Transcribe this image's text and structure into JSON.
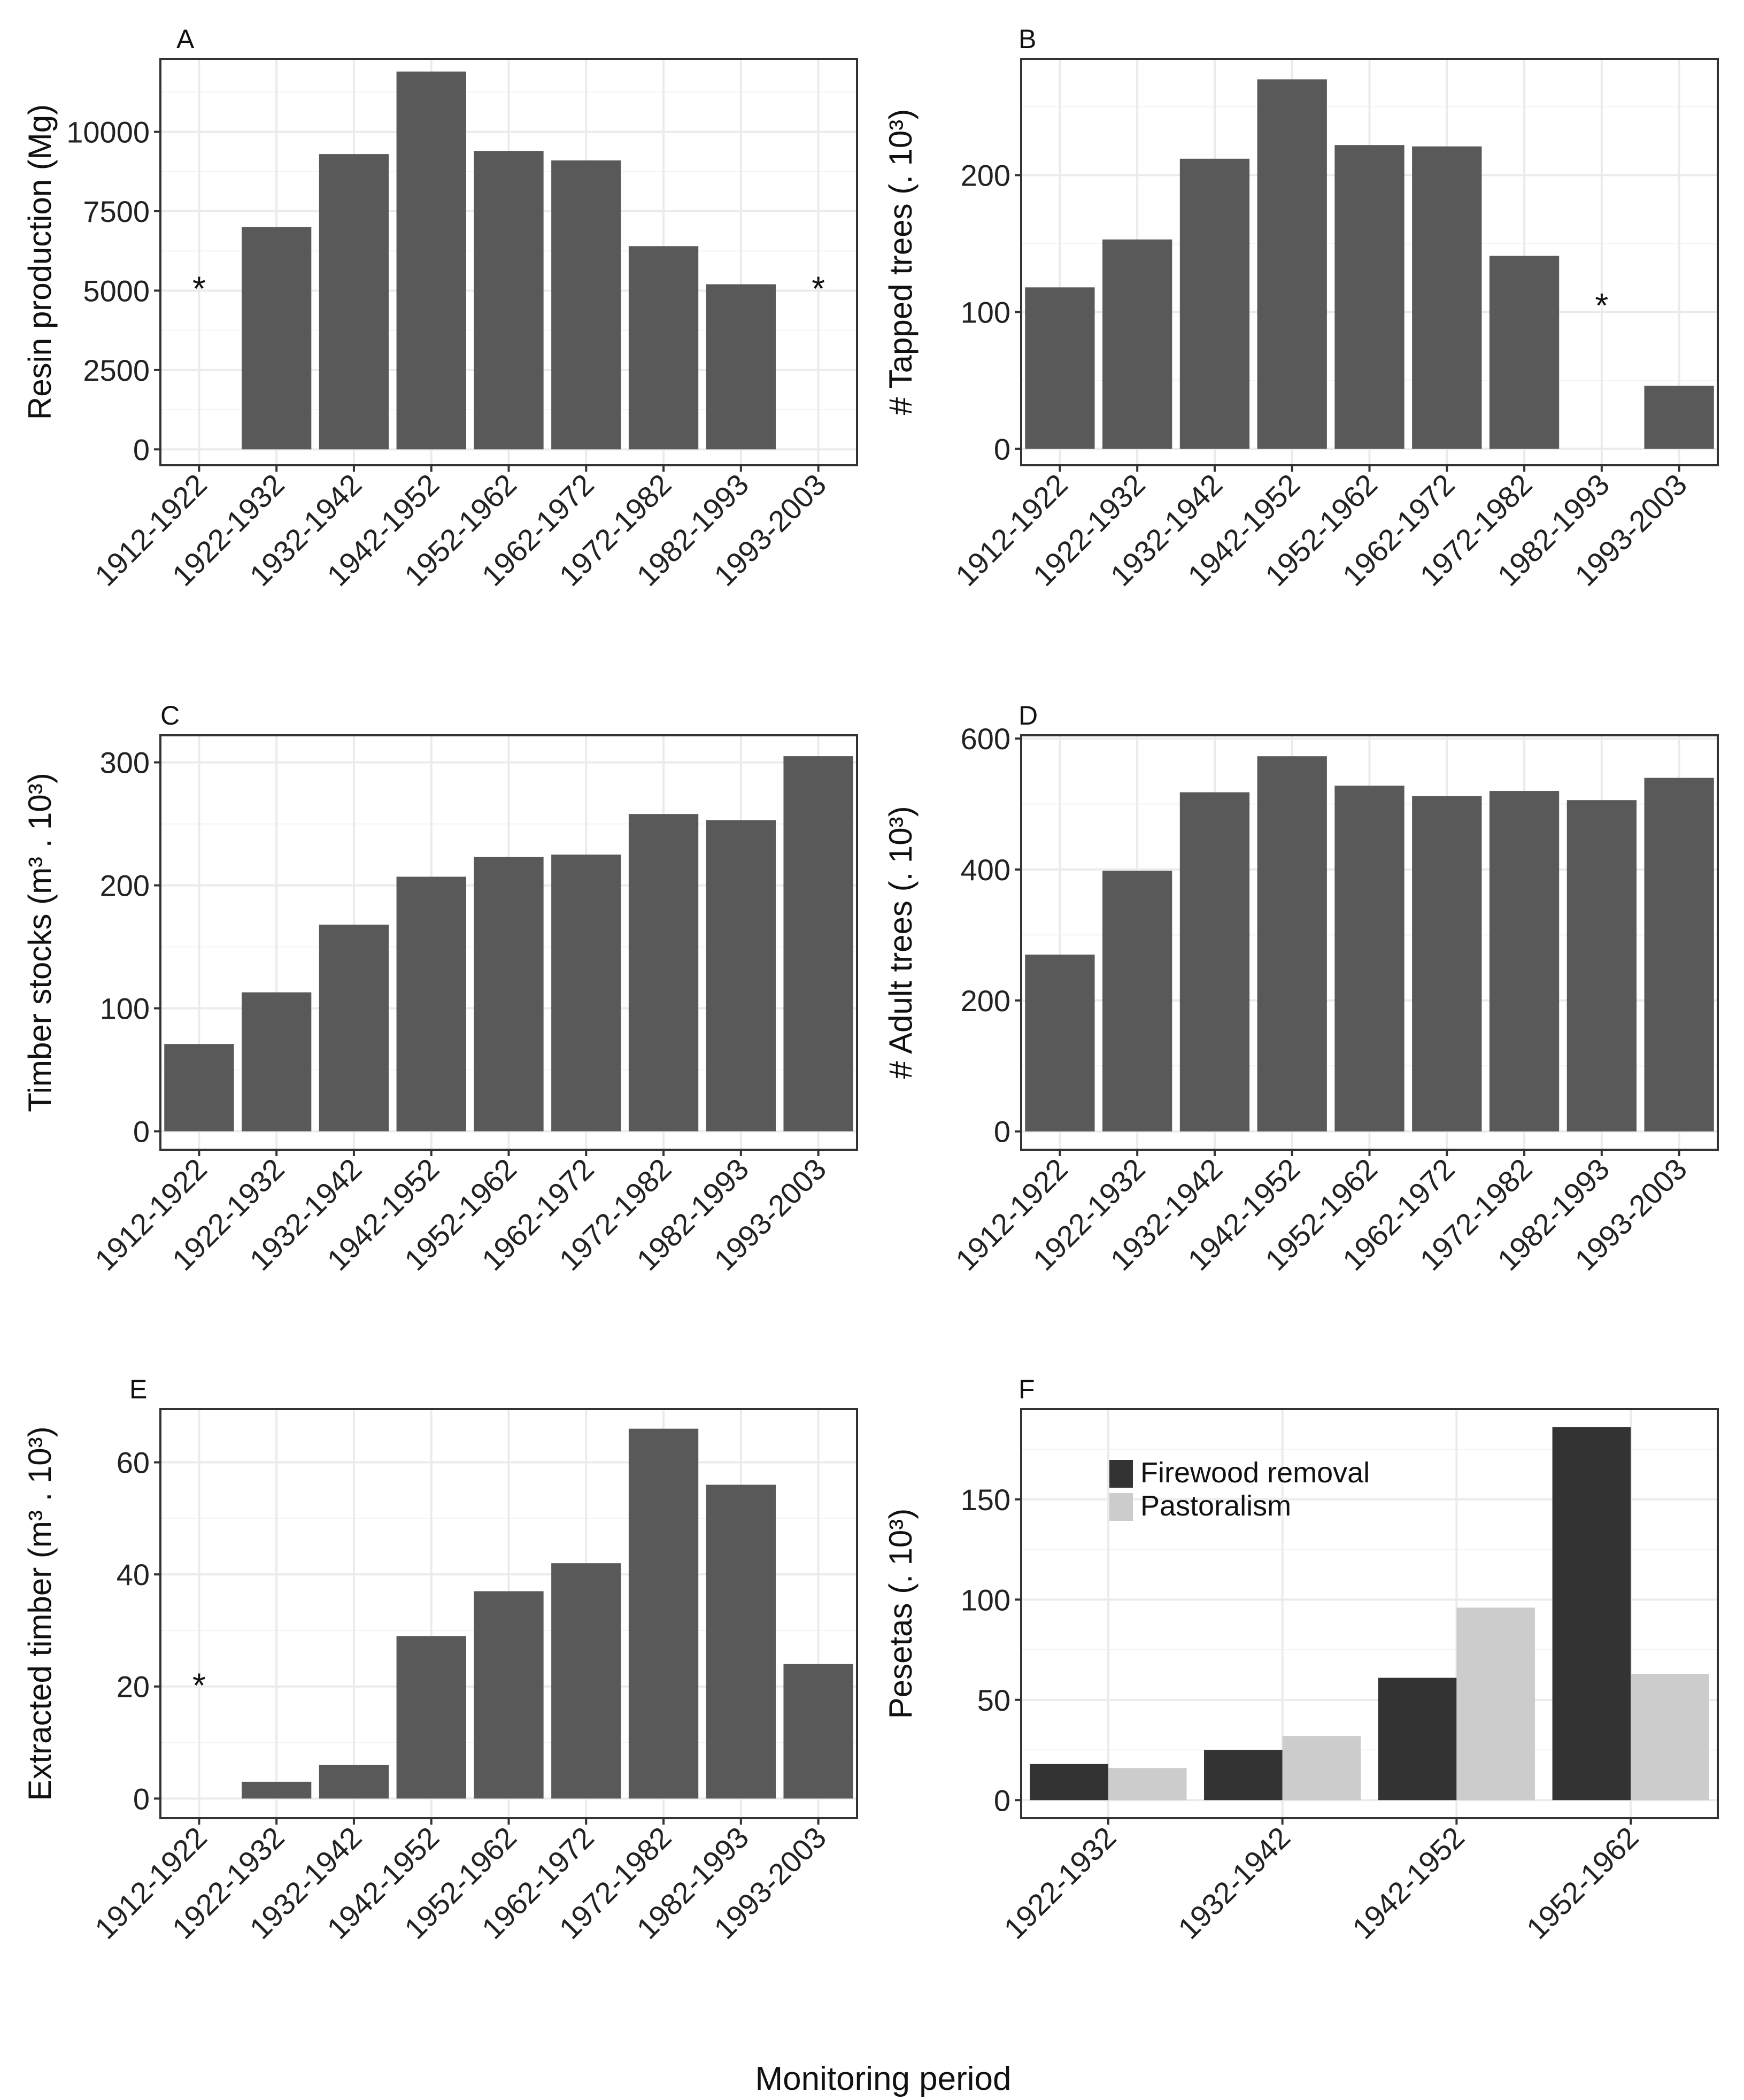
{
  "figure": {
    "shared_xlabel": "Monitoring period"
  },
  "chart_data": [
    {
      "panel": "A",
      "type": "bar",
      "ylabel": "Resin production (Mg)",
      "categories": [
        "1912-1922",
        "1922-1932",
        "1932-1942",
        "1942-1952",
        "1952-1962",
        "1962-1972",
        "1972-1982",
        "1982-1993",
        "1993-2003"
      ],
      "values": [
        null,
        7000,
        9300,
        11900,
        9400,
        9100,
        6400,
        5200,
        null
      ],
      "star_markers": [
        {
          "category": "1912-1922",
          "text": "*",
          "y": 5200
        },
        {
          "category": "1993-2003",
          "text": "*",
          "y": 5200
        }
      ],
      "ylim": [
        -500,
        12300
      ],
      "yticks": [
        0,
        2500,
        5000,
        7500,
        10000
      ],
      "grid": true
    },
    {
      "panel": "B",
      "type": "bar",
      "ylabel": "# Tapped trees (. 10³)",
      "categories": [
        "1912-1922",
        "1922-1932",
        "1932-1942",
        "1942-1952",
        "1952-1962",
        "1962-1972",
        "1972-1982",
        "1982-1993",
        "1993-2003"
      ],
      "values": [
        118,
        153,
        212,
        270,
        222,
        221,
        141,
        null,
        46
      ],
      "star_markers": [
        {
          "category": "1982-1993",
          "text": "*",
          "y": 108
        }
      ],
      "ylim": [
        -12,
        285
      ],
      "yticks": [
        0,
        100,
        200
      ],
      "grid": true
    },
    {
      "panel": "C",
      "type": "bar",
      "ylabel": "Timber stocks (m³ . 10³)",
      "categories": [
        "1912-1922",
        "1922-1932",
        "1932-1942",
        "1942-1952",
        "1952-1962",
        "1962-1972",
        "1972-1982",
        "1982-1993",
        "1993-2003"
      ],
      "values": [
        71,
        113,
        168,
        207,
        223,
        225,
        258,
        253,
        305
      ],
      "star_markers": [],
      "ylim": [
        -15,
        322
      ],
      "yticks": [
        0,
        100,
        200,
        300
      ],
      "grid": true
    },
    {
      "panel": "D",
      "type": "bar",
      "ylabel": "# Adult trees (. 10³)",
      "categories": [
        "1912-1922",
        "1922-1932",
        "1932-1942",
        "1942-1952",
        "1952-1962",
        "1962-1972",
        "1972-1982",
        "1982-1993",
        "1993-2003"
      ],
      "values": [
        270,
        398,
        518,
        573,
        528,
        512,
        520,
        506,
        540
      ],
      "star_markers": [],
      "ylim": [
        -28,
        605
      ],
      "yticks": [
        0,
        200,
        400,
        600
      ],
      "grid": true
    },
    {
      "panel": "E",
      "type": "bar",
      "ylabel": "Extracted timber (m³ . 10³)",
      "categories": [
        "1912-1922",
        "1922-1932",
        "1932-1942",
        "1942-1952",
        "1952-1962",
        "1962-1972",
        "1972-1982",
        "1982-1993",
        "1993-2003"
      ],
      "values": [
        null,
        3,
        6,
        29,
        37,
        42,
        66,
        56,
        24
      ],
      "star_markers": [
        {
          "category": "1912-1922",
          "text": "*",
          "y": 21
        }
      ],
      "ylim": [
        -3.5,
        69.5
      ],
      "yticks": [
        0,
        20,
        40,
        60
      ],
      "grid": true
    },
    {
      "panel": "F",
      "type": "bar",
      "ylabel": "Pesetas (. 10³)",
      "categories": [
        "1922-1932",
        "1932-1942",
        "1942-1952",
        "1952-1962"
      ],
      "series": [
        {
          "name": "Firewood removal",
          "color": "#333333",
          "values": [
            18,
            25,
            61,
            186
          ]
        },
        {
          "name": "Pastoralism",
          "color": "#cccccc",
          "values": [
            16,
            32,
            96,
            63
          ]
        }
      ],
      "star_markers": [],
      "ylim": [
        -9,
        195
      ],
      "yticks": [
        0,
        50,
        100,
        150
      ],
      "legend": "top-left",
      "grid": true
    }
  ]
}
